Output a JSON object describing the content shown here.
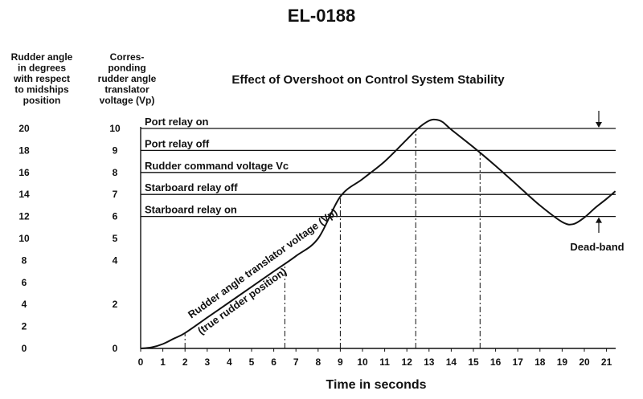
{
  "doc_id": "EL-0188",
  "chart_data": {
    "type": "line",
    "title": "Effect of Overshoot on Control System Stability",
    "xlabel": "Time in seconds",
    "ylabel_left_lines": [
      "Rudder angle",
      "in degrees",
      "with respect",
      "to midships",
      "position"
    ],
    "ylabel_right_lines": [
      "Corres-",
      "ponding",
      "rudder angle",
      "translator",
      "voltage (Vp)"
    ],
    "x_ticks": [
      "0",
      "1",
      "2",
      "3",
      "4",
      "5",
      "6",
      "7",
      "8",
      "9",
      "10",
      "11",
      "12",
      "13",
      "14",
      "15",
      "16",
      "17",
      "18",
      "19",
      "20",
      "21"
    ],
    "y_ticks_voltage": [
      "0",
      "2",
      "4",
      "5",
      "6",
      "7",
      "8",
      "9",
      "10"
    ],
    "y_ticks_voltage_values": [
      0,
      2,
      4,
      5,
      6,
      7,
      8,
      9,
      10
    ],
    "y_ticks_degrees": [
      "0",
      "2",
      "4",
      "6",
      "8",
      "10",
      "12",
      "14",
      "16",
      "18",
      "20"
    ],
    "xlim": [
      0,
      21.4
    ],
    "ylim": [
      0,
      10.4
    ],
    "reference_lines": [
      {
        "label": "Port relay on",
        "value": 10
      },
      {
        "label": "Port relay off",
        "value": 9
      },
      {
        "label": "Rudder command voltage Vc",
        "value": 8
      },
      {
        "label": "Starboard relay off",
        "value": 7
      },
      {
        "label": "Starboard relay on",
        "value": 6
      }
    ],
    "dashdot_times": [
      2,
      6.5,
      9,
      12.4,
      15.3
    ],
    "series": [
      {
        "name": "Rudder angle translator voltage (Vp)",
        "points": [
          [
            0,
            0
          ],
          [
            0.5,
            0.05
          ],
          [
            1,
            0.2
          ],
          [
            1.5,
            0.45
          ],
          [
            2,
            0.7
          ],
          [
            3,
            1.4
          ],
          [
            4,
            2.1
          ],
          [
            5,
            2.8
          ],
          [
            6,
            3.5
          ],
          [
            7,
            4.2
          ],
          [
            8,
            5.0
          ],
          [
            9,
            6.9
          ],
          [
            10,
            7.7
          ],
          [
            11,
            8.5
          ],
          [
            12,
            9.5
          ],
          [
            12.5,
            10.0
          ],
          [
            13,
            10.35
          ],
          [
            13.3,
            10.4
          ],
          [
            13.6,
            10.3
          ],
          [
            14,
            9.95
          ],
          [
            15,
            9.15
          ],
          [
            16,
            8.3
          ],
          [
            17,
            7.4
          ],
          [
            18,
            6.5
          ],
          [
            19,
            5.75
          ],
          [
            19.5,
            5.65
          ],
          [
            20,
            5.95
          ],
          [
            20.5,
            6.4
          ],
          [
            21,
            6.8
          ],
          [
            21.4,
            7.15
          ]
        ]
      }
    ],
    "curve_label_line1": "Rudder angle translator voltage (Vp)",
    "curve_label_line2": "(true rudder position)",
    "deadband_label": "Dead-band"
  }
}
